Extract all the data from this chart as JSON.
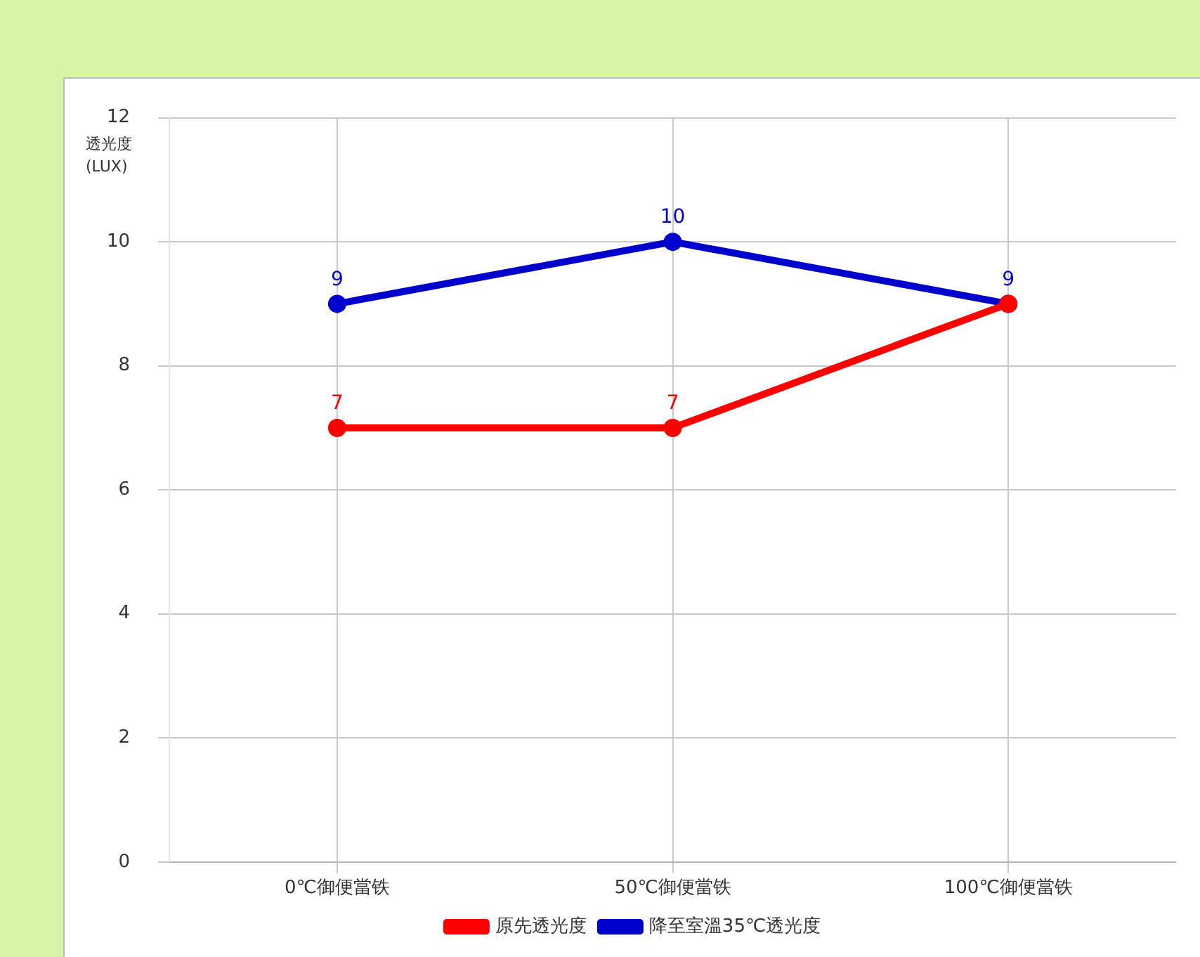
{
  "chart_data": {
    "type": "line",
    "ylabel": "透光度 (LUX)",
    "categories": [
      "0℃御便當铁",
      "50℃御便當铁",
      "100℃御便當铁"
    ],
    "series": [
      {
        "name": "原先透光度",
        "color": "#ff0000",
        "values": [
          7,
          7,
          9
        ],
        "value_labels": [
          "7",
          "7",
          null
        ]
      },
      {
        "name": "降至室溫35℃透光度",
        "color": "#0000cc",
        "values": [
          9,
          10,
          9
        ],
        "value_labels": [
          "9",
          "10",
          "9"
        ]
      }
    ],
    "ylim": [
      0,
      12
    ],
    "yticks": [
      0,
      2,
      4,
      6,
      8,
      10,
      12
    ],
    "grid": true,
    "legend": "bottom",
    "marker": "circle",
    "line_style": "solid"
  }
}
